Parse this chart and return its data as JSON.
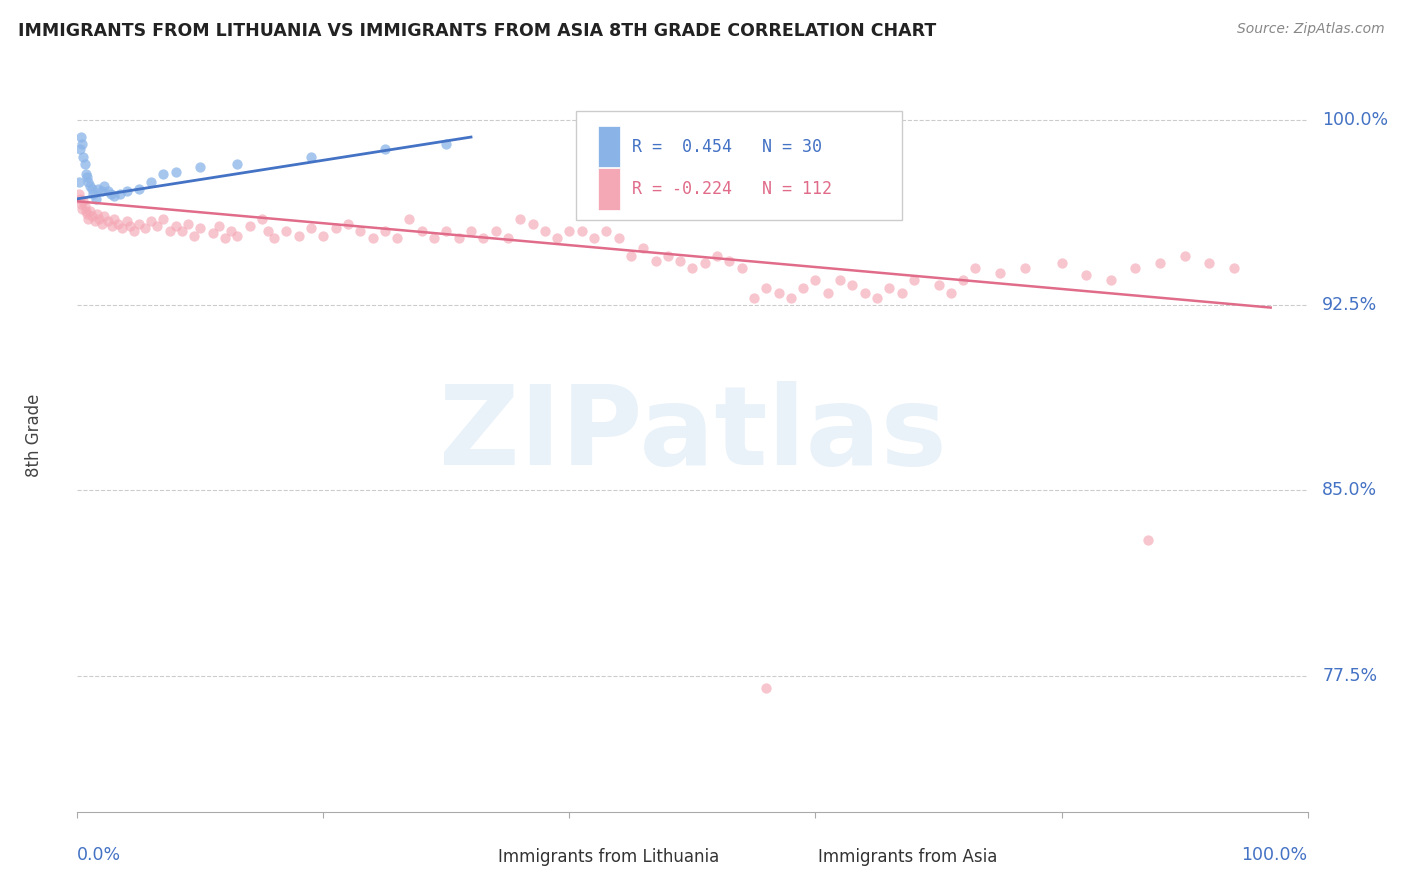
{
  "title": "IMMIGRANTS FROM LITHUANIA VS IMMIGRANTS FROM ASIA 8TH GRADE CORRELATION CHART",
  "source": "Source: ZipAtlas.com",
  "ylabel": "8th Grade",
  "ytick_labels": [
    "100.0%",
    "92.5%",
    "85.0%",
    "77.5%"
  ],
  "ytick_values": [
    1.0,
    0.925,
    0.85,
    0.775
  ],
  "y_min": 0.72,
  "y_max": 1.025,
  "x_min": 0.0,
  "x_max": 1.0,
  "color_blue": "#8ab4e8",
  "color_pink": "#f4a7b4",
  "color_blue_line": "#4472c4",
  "color_pink_line": "#e06c8a",
  "watermark": "ZIPatlas",
  "blue_r": 0.454,
  "blue_n": 30,
  "pink_r": -0.224,
  "pink_n": 112,
  "blue_line_x": [
    0.0,
    0.32
  ],
  "blue_line_y": [
    0.968,
    0.993
  ],
  "pink_line_x": [
    0.0,
    0.97
  ],
  "pink_line_y": [
    0.967,
    0.924
  ],
  "blue_points_x": [
    0.001,
    0.002,
    0.003,
    0.004,
    0.005,
    0.006,
    0.007,
    0.008,
    0.009,
    0.01,
    0.012,
    0.013,
    0.015,
    0.017,
    0.02,
    0.022,
    0.025,
    0.027,
    0.03,
    0.035,
    0.04,
    0.05,
    0.06,
    0.07,
    0.08,
    0.1,
    0.13,
    0.19,
    0.25,
    0.3
  ],
  "blue_points_y": [
    0.975,
    0.988,
    0.993,
    0.99,
    0.985,
    0.982,
    0.978,
    0.977,
    0.975,
    0.973,
    0.972,
    0.97,
    0.968,
    0.972,
    0.971,
    0.973,
    0.971,
    0.97,
    0.969,
    0.97,
    0.971,
    0.972,
    0.975,
    0.978,
    0.979,
    0.981,
    0.982,
    0.985,
    0.988,
    0.99
  ],
  "pink_points_x": [
    0.001,
    0.002,
    0.003,
    0.004,
    0.005,
    0.006,
    0.007,
    0.008,
    0.009,
    0.01,
    0.012,
    0.014,
    0.016,
    0.018,
    0.02,
    0.022,
    0.025,
    0.028,
    0.03,
    0.033,
    0.036,
    0.04,
    0.043,
    0.046,
    0.05,
    0.055,
    0.06,
    0.065,
    0.07,
    0.075,
    0.08,
    0.085,
    0.09,
    0.095,
    0.1,
    0.11,
    0.115,
    0.12,
    0.125,
    0.13,
    0.14,
    0.15,
    0.155,
    0.16,
    0.17,
    0.18,
    0.19,
    0.2,
    0.21,
    0.22,
    0.23,
    0.24,
    0.25,
    0.26,
    0.27,
    0.28,
    0.29,
    0.3,
    0.31,
    0.32,
    0.33,
    0.34,
    0.35,
    0.36,
    0.37,
    0.38,
    0.39,
    0.4,
    0.41,
    0.42,
    0.43,
    0.44,
    0.45,
    0.46,
    0.47,
    0.48,
    0.49,
    0.5,
    0.51,
    0.52,
    0.53,
    0.54,
    0.55,
    0.56,
    0.57,
    0.58,
    0.59,
    0.6,
    0.61,
    0.62,
    0.63,
    0.64,
    0.65,
    0.66,
    0.67,
    0.68,
    0.7,
    0.71,
    0.72,
    0.73,
    0.75,
    0.77,
    0.8,
    0.82,
    0.84,
    0.86,
    0.88,
    0.9,
    0.92,
    0.94,
    0.56,
    0.87
  ],
  "pink_points_y": [
    0.97,
    0.968,
    0.966,
    0.964,
    0.967,
    0.965,
    0.963,
    0.962,
    0.96,
    0.963,
    0.961,
    0.959,
    0.962,
    0.96,
    0.958,
    0.961,
    0.959,
    0.957,
    0.96,
    0.958,
    0.956,
    0.959,
    0.957,
    0.955,
    0.958,
    0.956,
    0.959,
    0.957,
    0.96,
    0.955,
    0.957,
    0.955,
    0.958,
    0.953,
    0.956,
    0.954,
    0.957,
    0.952,
    0.955,
    0.953,
    0.957,
    0.96,
    0.955,
    0.952,
    0.955,
    0.953,
    0.956,
    0.953,
    0.956,
    0.958,
    0.955,
    0.952,
    0.955,
    0.952,
    0.96,
    0.955,
    0.952,
    0.955,
    0.952,
    0.955,
    0.952,
    0.955,
    0.952,
    0.96,
    0.958,
    0.955,
    0.952,
    0.955,
    0.955,
    0.952,
    0.955,
    0.952,
    0.945,
    0.948,
    0.943,
    0.945,
    0.943,
    0.94,
    0.942,
    0.945,
    0.943,
    0.94,
    0.928,
    0.932,
    0.93,
    0.928,
    0.932,
    0.935,
    0.93,
    0.935,
    0.933,
    0.93,
    0.928,
    0.932,
    0.93,
    0.935,
    0.933,
    0.93,
    0.935,
    0.94,
    0.938,
    0.94,
    0.942,
    0.937,
    0.935,
    0.94,
    0.942,
    0.945,
    0.942,
    0.94,
    0.77,
    0.83
  ]
}
